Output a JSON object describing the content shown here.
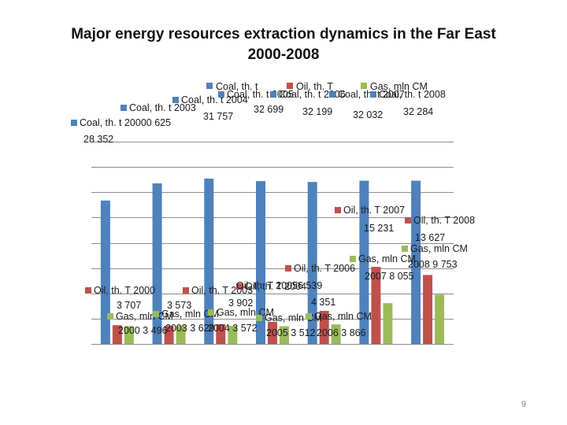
{
  "slide": {
    "title_line1": "Major energy resources extraction dynamics in the Far East",
    "title_line2": "2000-2008",
    "page_number": "9"
  },
  "chart_data": {
    "type": "bar",
    "title": "Major energy resources extraction dynamics in the Far East 2000-2008",
    "categories": [
      "2000",
      "2003",
      "2004",
      "2005",
      "2006",
      "2007",
      "2008"
    ],
    "series": [
      {
        "name": "Coal, th. t",
        "color": "#4f81bd",
        "values": [
          28352,
          31757,
          32699,
          32199,
          32032,
          32284,
          32284
        ]
      },
      {
        "name": "Oil, th. T",
        "color": "#c0504d",
        "values": [
          3707,
          3573,
          3902,
          4351,
          6539,
          15231,
          13627
        ]
      },
      {
        "name": "Gas, mln CM",
        "color": "#9bbb59",
        "values": [
          3496,
          3629,
          3572,
          3512,
          3866,
          8055,
          9753
        ]
      }
    ],
    "ylim": [
      0,
      40000
    ],
    "grid": true,
    "legend_position": "top",
    "legend_entries": [
      "Coal, th. t",
      "Oil, th. T",
      "Gas, mln CM"
    ],
    "data_labels": {
      "coal": [
        "Coal, th. t 20000 625",
        "28 352",
        "Coal, th. t 2003",
        "31 757",
        "Coal, th. t 2004",
        "Coal, th. t 2005",
        "32 699",
        "Coal, th. t 2006",
        "Coal, th. t 2007",
        "32 199",
        "32 032",
        "Coal, th. t 2008",
        "32 284"
      ],
      "oil": [
        "Oil, th. T 2000",
        "3 707",
        "Oil, th. T 2003",
        "3 573",
        "Oil, th. T 2004",
        "3 902",
        "Oil, th. T 20056 539",
        "4 351",
        "Oil, th. T 2006",
        "Oil, th. T 2007",
        "15 231",
        "Oil, th. T 2008",
        "13 627"
      ],
      "gas": [
        "Gas, mln CM",
        "2000 3 496",
        "Gas, mln CM",
        "2003 3 629",
        "Gas, mln CM",
        "2004 3 572",
        "Gas, mln CM",
        "2005 3 512",
        "Gas, mln CM",
        "2006 3 866",
        "Gas, mln CM",
        "2007 8 055",
        "Gas, mln CM",
        "2008 9 753"
      ]
    }
  }
}
